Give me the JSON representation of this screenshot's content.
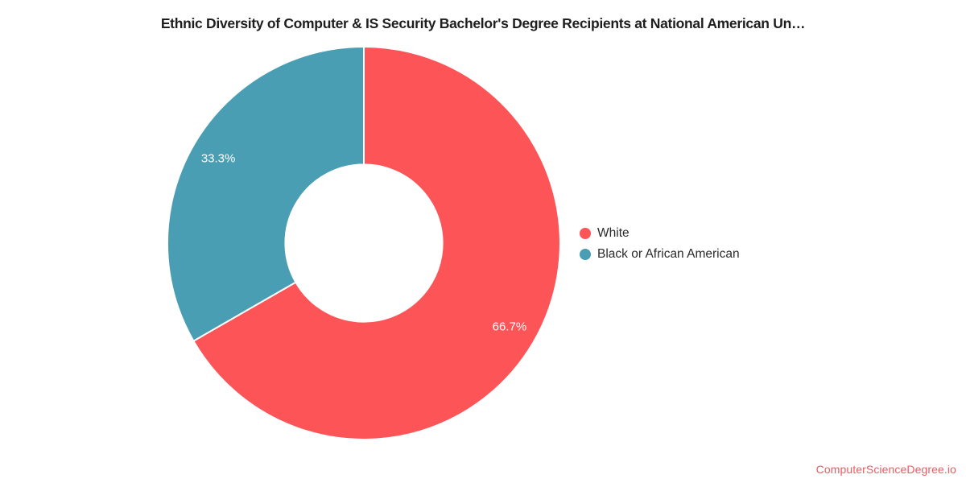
{
  "title": "Ethnic Diversity of Computer & IS Security Bachelor's Degree Recipients at National American Un…",
  "watermark": {
    "text": "ComputerScienceDegree.io",
    "color": "#ef5a61"
  },
  "chart_data": {
    "type": "pie",
    "subtype": "donut",
    "title": "Ethnic Diversity of Computer & IS Security Bachelor's Degree Recipients at National American Un…",
    "categories": [
      "White",
      "Black or African American"
    ],
    "values": [
      66.7,
      33.3
    ],
    "slice_labels": [
      "66.7%",
      "33.3%"
    ],
    "colors": [
      "#fc5457",
      "#4a9eb3"
    ],
    "slice_border_color": "#ffffff",
    "start_angle_deg": 0,
    "direction": "clockwise",
    "inner_radius_ratio": 0.4,
    "legend_position": "right",
    "label_text_color": "#ffffff"
  }
}
